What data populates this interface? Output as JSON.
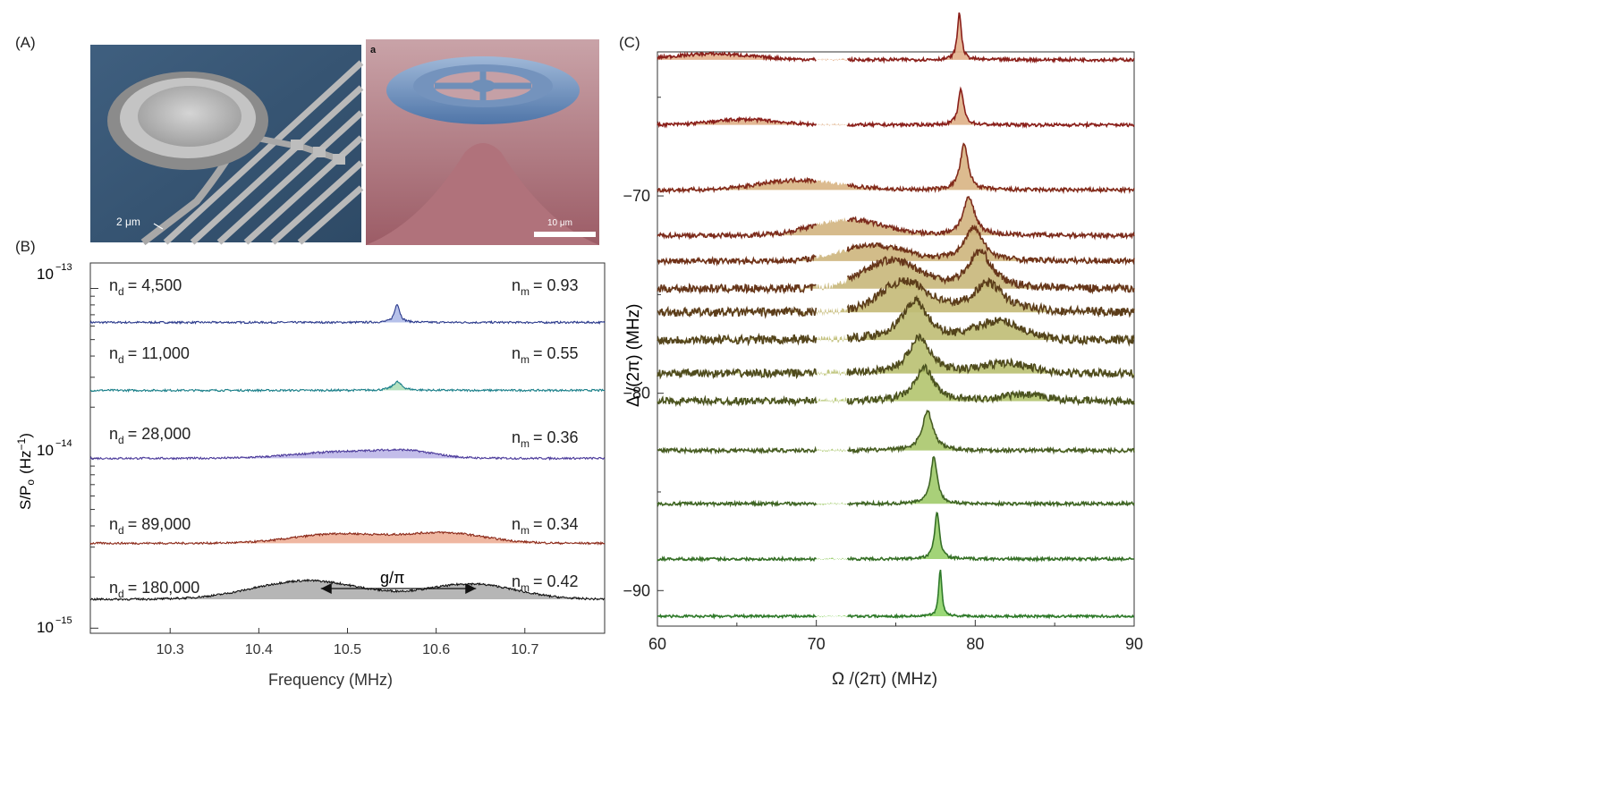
{
  "panels": {
    "a": "(A)",
    "b": "(B)",
    "c": "(C)"
  },
  "images": {
    "left": {
      "scale_label": "2 μm"
    },
    "right": {
      "corner_label": "a",
      "scale_label": "10 μm"
    }
  },
  "chart_data": [
    {
      "type": "line",
      "id": "B",
      "title": "",
      "xlabel": "Frequency (MHz)",
      "ylabel": "S/P",
      "ylabel_sub": "o",
      "ylabel_unit": "(Hz",
      "ylabel_unit_sup": "−1",
      "ylabel_unit_end": ")",
      "xlim": [
        10.21,
        10.79
      ],
      "xticks": [
        10.3,
        10.4,
        10.5,
        10.6,
        10.7
      ],
      "xtick_labels": [
        "10.3",
        "10.4",
        "10.5",
        "10.6",
        "10.7"
      ],
      "ytick_labels": [
        {
          "base": "10",
          "exp": "−13",
          "decade": -13
        },
        {
          "base": "10",
          "exp": "−14",
          "decade": -14
        },
        {
          "base": "10",
          "exp": "−15",
          "decade": -15
        }
      ],
      "annotation": {
        "text": "g/π",
        "from": 10.47,
        "to": 10.645
      },
      "series": [
        {
          "nd": "n",
          "nd_sub": "d",
          "nd_value": "= 4,500",
          "nm": "n",
          "nm_sub": "m",
          "nm_value": "= 0.93",
          "fill": "#a9b6e6",
          "line": "#2b3a8c",
          "level": -13.2,
          "peaks": [
            {
              "f": 10.556,
              "w": 0.0035,
              "a": 0.11
            }
          ]
        },
        {
          "nd": "n",
          "nd_sub": "d",
          "nd_value": "= 11,000",
          "nm": "n",
          "nm_sub": "m",
          "nm_value": "= 0.55",
          "fill": "#a9ddb5",
          "line": "#1a7f8a",
          "level": -13.6,
          "peaks": [
            {
              "f": 10.556,
              "w": 0.006,
              "a": 0.05
            }
          ]
        },
        {
          "nd": "n",
          "nd_sub": "d",
          "nd_value": "= 28,000",
          "nm": "n",
          "nm_sub": "m",
          "nm_value": "= 0.36",
          "fill": "#b9b1e6",
          "line": "#4b3a9a",
          "level": -14.0,
          "peaks": [
            {
              "f": 10.5,
              "w": 0.055,
              "a": 0.04
            },
            {
              "f": 10.57,
              "w": 0.03,
              "a": 0.03
            }
          ]
        },
        {
          "nd": "n",
          "nd_sub": "d",
          "nd_value": "= 89,000",
          "nm": "n",
          "nm_sub": "m",
          "nm_value": "= 0.34",
          "fill": "#ecaa90",
          "line": "#8c2a1a",
          "level": -14.5,
          "peaks": [
            {
              "f": 10.49,
              "w": 0.05,
              "a": 0.055
            },
            {
              "f": 10.61,
              "w": 0.045,
              "a": 0.06
            }
          ]
        },
        {
          "nd": "n",
          "nd_sub": "d",
          "nd_value": "= 180,000",
          "nm": "n",
          "nm_sub": "m",
          "nm_value": "= 0.42",
          "fill": "#a9a9a9",
          "line": "#111111",
          "level": -14.83,
          "peaks": [
            {
              "f": 10.455,
              "w": 0.06,
              "a": 0.11
            },
            {
              "f": 10.64,
              "w": 0.05,
              "a": 0.09
            }
          ]
        }
      ]
    },
    {
      "type": "line",
      "id": "C",
      "title": "",
      "xlabel": "Ω /(2π) (MHz)",
      "ylabel": "Δ /(2π) (MHz)",
      "xlim": [
        60,
        90
      ],
      "ylim": [
        -91.8,
        -62.7
      ],
      "xticks": [
        60,
        70,
        80,
        90
      ],
      "xtick_labels": [
        "60",
        "70",
        "80",
        "90"
      ],
      "yticks": [
        -70,
        -80,
        -90
      ],
      "ytick_labels": [
        "−70",
        "−80",
        "−90"
      ],
      "series": [
        {
          "delta": -63.1,
          "peaks": [
            {
              "f": 79.0,
              "w": 0.15,
              "a": 2.4
            }
          ],
          "broad": [
            {
              "f": 63.5,
              "w": 2.5,
              "a": 0.3
            }
          ],
          "noise": 0.08,
          "color": "#8a1f1a",
          "fill": "#e3b08c"
        },
        {
          "delta": -66.4,
          "peaks": [
            {
              "f": 79.1,
              "w": 0.2,
              "a": 1.8
            }
          ],
          "broad": [
            {
              "f": 65.5,
              "w": 2.0,
              "a": 0.28
            }
          ],
          "noise": 0.08,
          "color": "#8a1f1a",
          "fill": "#dfb087"
        },
        {
          "delta": -69.7,
          "peaks": [
            {
              "f": 79.3,
              "w": 0.3,
              "a": 2.3
            }
          ],
          "broad": [
            {
              "f": 69.0,
              "w": 2.5,
              "a": 0.5
            }
          ],
          "noise": 0.1,
          "color": "#822a1a",
          "fill": "#d8b483"
        },
        {
          "delta": -72.0,
          "peaks": [
            {
              "f": 79.6,
              "w": 0.45,
              "a": 1.9
            }
          ],
          "broad": [
            {
              "f": 72.0,
              "w": 2.2,
              "a": 0.8
            }
          ],
          "noise": 0.12,
          "color": "#7c2b1c",
          "fill": "#d2b47f"
        },
        {
          "delta": -73.3,
          "peaks": [
            {
              "f": 79.9,
              "w": 0.7,
              "a": 1.7
            }
          ],
          "broad": [
            {
              "f": 73.5,
              "w": 2.0,
              "a": 0.8
            }
          ],
          "noise": 0.14,
          "color": "#6f3118",
          "fill": "#cdb57c"
        },
        {
          "delta": -74.7,
          "peaks": [
            {
              "f": 80.3,
              "w": 0.9,
              "a": 1.9
            }
          ],
          "broad": [
            {
              "f": 74.7,
              "w": 1.8,
              "a": 1.4
            }
          ],
          "noise": 0.2,
          "color": "#66361a",
          "fill": "#c8b77a"
        },
        {
          "delta": -75.9,
          "peaks": [
            {
              "f": 80.8,
              "w": 1.2,
              "a": 1.5
            }
          ],
          "broad": [
            {
              "f": 75.5,
              "w": 1.5,
              "a": 1.5
            }
          ],
          "noise": 0.22,
          "color": "#5c3d1a",
          "fill": "#c4b977"
        },
        {
          "delta": -77.3,
          "peaks": [
            {
              "f": 76.2,
              "w": 1.0,
              "a": 2.0
            }
          ],
          "broad": [
            {
              "f": 81.5,
              "w": 1.4,
              "a": 0.9
            }
          ],
          "noise": 0.22,
          "color": "#54441b",
          "fill": "#bfbd74"
        },
        {
          "delta": -79.0,
          "peaks": [
            {
              "f": 76.5,
              "w": 0.8,
              "a": 1.9
            }
          ],
          "broad": [
            {
              "f": 82.0,
              "w": 1.5,
              "a": 0.5
            }
          ],
          "noise": 0.2,
          "color": "#4f4b1d",
          "fill": "#b9c071"
        },
        {
          "delta": -80.4,
          "peaks": [
            {
              "f": 76.8,
              "w": 0.7,
              "a": 1.7
            }
          ],
          "broad": [
            {
              "f": 83.0,
              "w": 1.5,
              "a": 0.3
            }
          ],
          "noise": 0.18,
          "color": "#4b531f",
          "fill": "#b3c46e"
        },
        {
          "delta": -82.9,
          "peaks": [
            {
              "f": 77.0,
              "w": 0.4,
              "a": 2.0
            }
          ],
          "broad": [],
          "noise": 0.1,
          "color": "#475c22",
          "fill": "#aac76c"
        },
        {
          "delta": -85.6,
          "peaks": [
            {
              "f": 77.4,
              "w": 0.25,
              "a": 2.4
            }
          ],
          "broad": [],
          "noise": 0.08,
          "color": "#3f6524",
          "fill": "#a0cb6a"
        },
        {
          "delta": -88.4,
          "peaks": [
            {
              "f": 77.6,
              "w": 0.18,
              "a": 2.4
            }
          ],
          "broad": [],
          "noise": 0.07,
          "color": "#356f26",
          "fill": "#98cf69"
        },
        {
          "delta": -91.3,
          "peaks": [
            {
              "f": 77.8,
              "w": 0.12,
              "a": 2.4
            }
          ],
          "broad": [],
          "noise": 0.06,
          "color": "#2f7a2a",
          "fill": "#8fd468"
        }
      ]
    }
  ]
}
